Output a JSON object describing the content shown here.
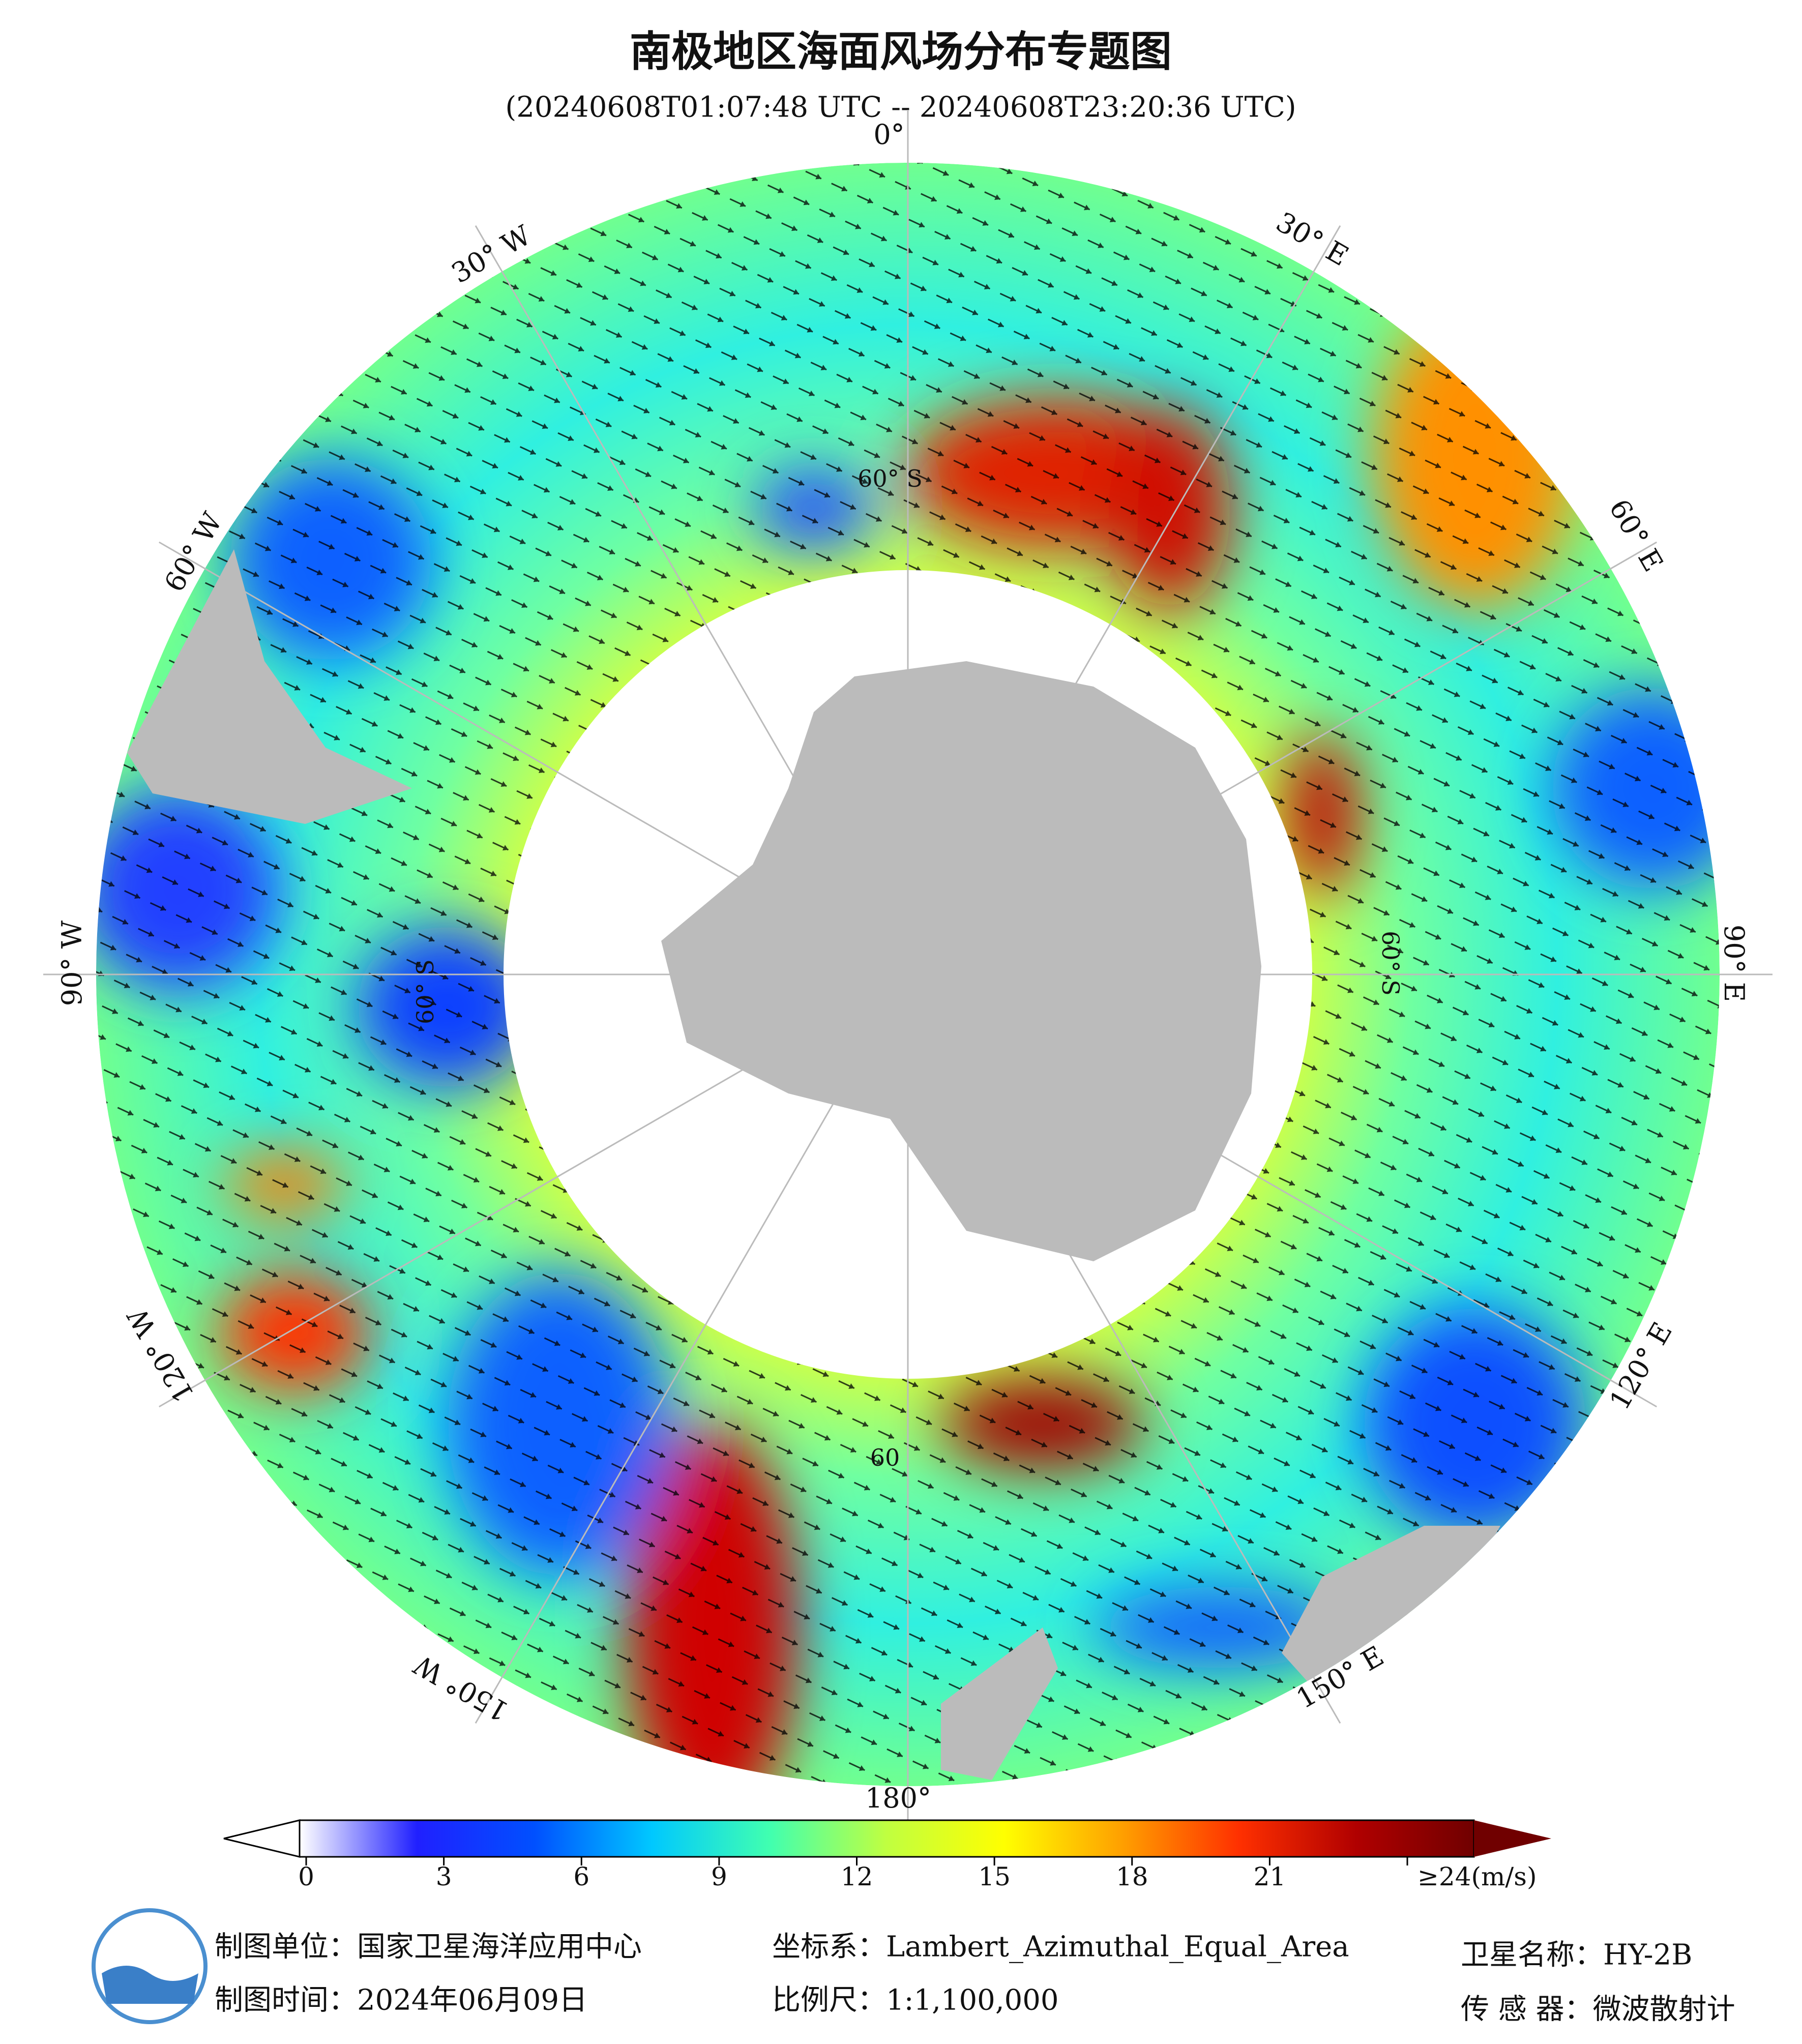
{
  "title": "南极地区海面风场分布专题图",
  "subtitle": "(20240608T01:07:48 UTC -- 20240608T23:20:36 UTC)",
  "map": {
    "lon_labels": [
      "0°",
      "30° E",
      "60° E",
      "90° E",
      "120° E",
      "150° E",
      "180°",
      "150° W",
      "120° W",
      "90° W",
      "60° W",
      "30° W"
    ],
    "lat_labels": [
      "60° S",
      "60° S",
      "60° S",
      "60"
    ]
  },
  "colorbar": {
    "lim": [
      0,
      24
    ],
    "ticks": [
      0,
      3,
      6,
      9,
      12,
      15,
      18,
      21,
      {
        "value": 24,
        "label": "≥24(m/s)"
      }
    ],
    "colors": [
      "#ffffff",
      "#2020ff",
      "#0050ff",
      "#00c8ff",
      "#40ffb0",
      "#c0ff40",
      "#ffff00",
      "#ffa000",
      "#ff3000",
      "#b00000",
      "#700000"
    ]
  },
  "footer": {
    "unit": "制图单位：国家卫星海洋应用中心",
    "date": "制图时间：2024年06月09日",
    "crs": "坐标系：Lambert_Azimuthal_Equal_Area",
    "scale": "比例尺：1:1,100,000",
    "satellite": "卫星名称：HY-2B",
    "sensor": "传 感 器：微波散射计"
  }
}
